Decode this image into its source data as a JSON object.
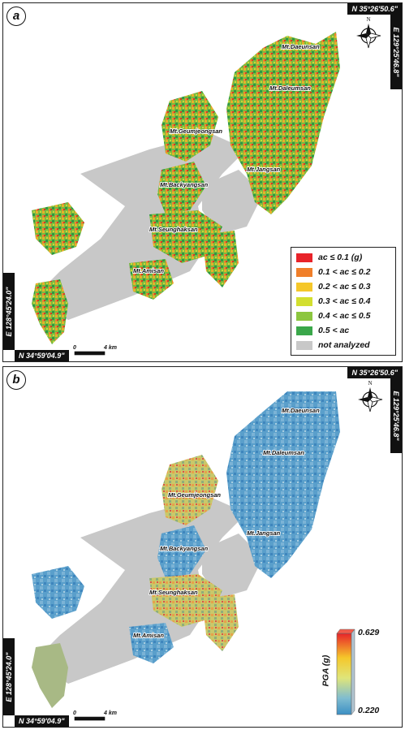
{
  "panel_a": {
    "letter": "a",
    "coord_top": "N 35°26'50.6\"",
    "coord_right": "E 129°25'46.8\"",
    "coord_left": "E 128°45'24.0\"",
    "coord_bottom": "N 34°59'04.9\"",
    "compass_label": "N",
    "mountains": [
      "Mt.Daeunsan",
      "Mt.Daleumsan",
      "Mt.Geumjeongsan",
      "Mt.Jangsan",
      "Mt.Backyangsan",
      "Mt.Seunghaksan",
      "Mt.Amisan"
    ],
    "scale": {
      "start": "0",
      "end": "4 km"
    },
    "legend": [
      {
        "label": "ac ≤ 0.1 (g)",
        "color": "#e8232a"
      },
      {
        "label": "0.1 < ac ≤ 0.2",
        "color": "#f07f2a"
      },
      {
        "label": "0.2 < ac ≤ 0.3",
        "color": "#f5c72a"
      },
      {
        "label": "0.3 < ac ≤ 0.4",
        "color": "#d3df2f"
      },
      {
        "label": "0.4 < ac ≤ 0.5",
        "color": "#8cc63f"
      },
      {
        "label": "0.5 < ac",
        "color": "#3aa74a"
      },
      {
        "label": "not analyzed",
        "color": "#c8c8c8"
      }
    ]
  },
  "panel_b": {
    "letter": "b",
    "coord_top": "N 35°26'50.6\"",
    "coord_right": "E 129°25'46.8\"",
    "coord_left": "E 128°45'24.0\"",
    "coord_bottom": "N 34°59'04.9\"",
    "compass_label": "N",
    "mountains": [
      "Mt.Daeunsan",
      "Mt.Daleumsan",
      "Mt.Geumjeongsan",
      "Mt.Jangsan",
      "Mt.Backyangsan",
      "Mt.Seunghaksan",
      "Mt.Amisan"
    ],
    "scale": {
      "start": "0",
      "end": "4 km"
    },
    "colorbar": {
      "title": "PGA (g)",
      "max": "0.629",
      "min": "0.220",
      "colors": [
        "#e8232a",
        "#f5c72a",
        "#dfe57a",
        "#7fbcd0",
        "#3b8fc4"
      ]
    }
  },
  "colors": {
    "not_analyzed": "#c8c8c8"
  }
}
